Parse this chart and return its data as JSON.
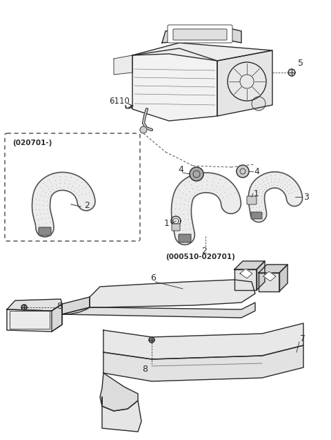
{
  "bg_color": "#ffffff",
  "line_color": "#2a2a2a",
  "label_color": "#000000",
  "lw_main": 1.0,
  "lw_thin": 0.6,
  "lw_thick": 1.4
}
